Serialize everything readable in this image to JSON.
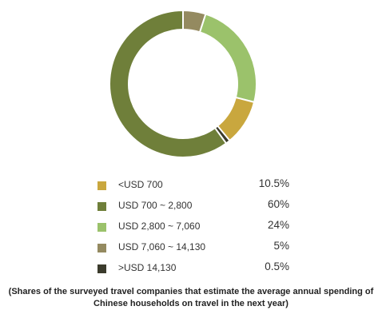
{
  "chart_data": {
    "type": "pie",
    "donut": true,
    "categories": [
      "<USD 700",
      "USD 700 ~ 2,800",
      "USD 2,800 ~ 7,060",
      "USD 7,060 ~ 14,130",
      ">USD 14,130"
    ],
    "values": [
      10.5,
      60,
      24,
      5,
      0.5
    ],
    "value_labels": [
      "10.5%",
      "60%",
      "24%",
      "5%",
      "0.5%"
    ],
    "colors": [
      "#c9a73e",
      "#6f7f3a",
      "#9bc26b",
      "#948a60",
      "#3b3b2c"
    ],
    "legend": "bottom",
    "caption_lines": [
      "(Shares of the surveyed travel companies that estimate the average annual spending of",
      "Chinese households on travel in the next year)"
    ]
  }
}
